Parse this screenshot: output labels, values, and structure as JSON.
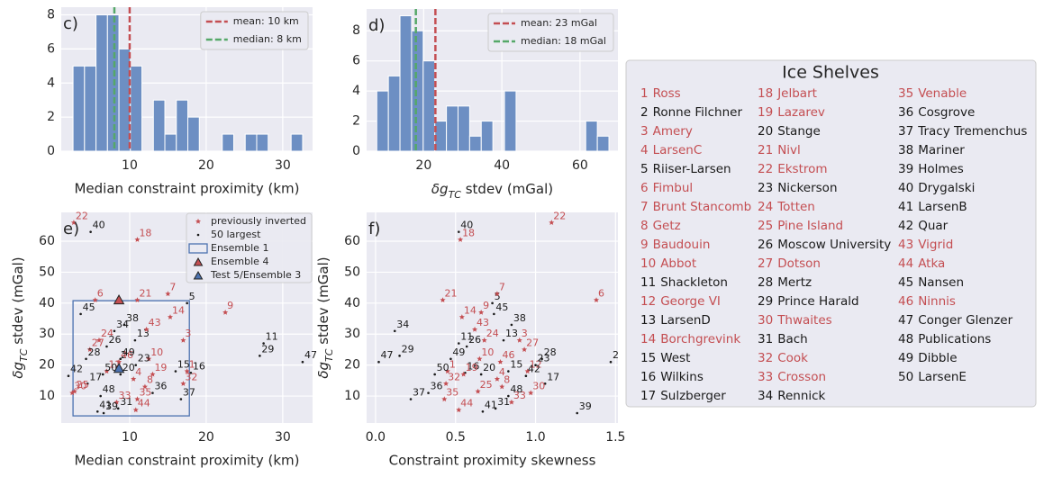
{
  "chart_data": [
    {
      "type": "histogram",
      "label": "c)",
      "xlabel": "Median constraint proximity (km)",
      "bins": [
        2.6,
        4.1,
        5.6,
        7.1,
        8.6,
        10.1,
        11.6,
        13.1,
        14.6,
        16.1,
        17.6,
        19.1,
        20.6,
        22.1,
        23.6,
        25.1,
        26.6,
        28.1,
        29.6,
        31.1,
        32.6
      ],
      "values": [
        5,
        5,
        8,
        8,
        6,
        5,
        0,
        3,
        1,
        3,
        2,
        0,
        0,
        1,
        0,
        1,
        1,
        0,
        0,
        1
      ],
      "color": "#6d8fc3",
      "mean": 10,
      "median": 8,
      "mean_color": "#c44e52",
      "median_color": "#55a868",
      "legend_labels": [
        "mean: 10 km",
        "median: 8 km"
      ],
      "xlim": [
        1.06,
        33.9
      ],
      "ylim": [
        0,
        8.45
      ],
      "xticks": [
        10,
        20,
        30
      ],
      "yticks": [
        0,
        2,
        4,
        6,
        8
      ],
      "grid": true
    },
    {
      "type": "histogram",
      "label": "d)",
      "xlabel": [
        "δg",
        "TC",
        " stdev (mGal)"
      ],
      "bins": [
        8,
        10.97,
        13.94,
        16.91,
        19.88,
        22.85,
        25.82,
        28.79,
        31.76,
        34.73,
        37.7,
        40.67,
        43.64,
        46.61,
        49.58,
        52.55,
        55.52,
        58.49,
        61.46,
        64.43,
        67.4
      ],
      "values": [
        4,
        5,
        9,
        8,
        6,
        2,
        3,
        3,
        1,
        2,
        0,
        4,
        0,
        0,
        0,
        0,
        0,
        0,
        2,
        1
      ],
      "color": "#6d8fc3",
      "mean": 23,
      "median": 18,
      "mean_color": "#c44e52",
      "median_color": "#55a868",
      "legend_labels": [
        "mean: 23 mGal",
        "median: 18 mGal"
      ],
      "xlim": [
        5.4,
        69.7
      ],
      "ylim": [
        0,
        9.45
      ],
      "xticks": [
        20,
        40,
        60
      ],
      "yticks": [
        0,
        2,
        4,
        6,
        8
      ],
      "grid": true
    },
    {
      "type": "scatter",
      "label": "e)",
      "xlabel": "Median constraint proximity (km)",
      "ylabel": [
        "δg",
        "TC",
        " stdev (mGal)"
      ],
      "x": [
        17.5,
        8.6,
        17,
        10.5,
        17.5,
        5.5,
        15,
        12,
        22.5,
        12.5,
        27.5,
        7,
        10.7,
        15.3,
        16,
        18,
        4.5,
        11,
        13,
        8.8,
        11,
        2.7,
        10.8,
        6,
        2.8,
        7,
        4.8,
        4.3,
        27,
        2.5,
        8.5,
        17,
        8.3,
        8,
        11,
        13,
        16.7,
        9.3,
        6.6,
        4.9,
        5.8,
        2,
        12.2,
        10.8,
        3.6,
        8.6,
        32.6,
        6.2,
        8.8,
        6.5
      ],
      "values": [
        18,
        21,
        28,
        15.5,
        40,
        41,
        43,
        13,
        37,
        22,
        27,
        18,
        28,
        35.5,
        18,
        17.5,
        14,
        60.5,
        17,
        17,
        41,
        66,
        20,
        28,
        11.5,
        26,
        25,
        22,
        23,
        11,
        6,
        14,
        8,
        31,
        9,
        11,
        9,
        33,
        4.5,
        63,
        5,
        16.5,
        31.5,
        5.5,
        36.5,
        21,
        21,
        10,
        22,
        17
      ],
      "legend": [
        {
          "label": "previously inverted",
          "color": "#c44e52",
          "marker": "star"
        },
        {
          "label": "50 largest",
          "color": "#1a1a1a",
          "marker": "dot"
        },
        {
          "label": "Ensemble 1",
          "color": "#4c72b0",
          "marker": "box"
        },
        {
          "label": "Ensemble 4",
          "color": "#c44e52",
          "marker": "triangle"
        },
        {
          "label": "Test 5/Ensemble 3",
          "color": "#4c72b0",
          "marker": "triangle"
        }
      ],
      "ensemble_1": {
        "x": [
          2.6,
          17.8
        ],
        "y": [
          3.6,
          40.8
        ]
      },
      "ensemble_4": {
        "x": 8.6,
        "y": 40.8
      },
      "test_5": {
        "x": 8.6,
        "y": 18.7
      },
      "xlim": [
        1.06,
        33.9
      ],
      "ylim": [
        1.3,
        69.3
      ],
      "xticks": [
        10,
        20,
        30
      ],
      "yticks": [
        10,
        20,
        30,
        40,
        50,
        60
      ],
      "grid": true
    },
    {
      "type": "scatter",
      "label": "f)",
      "xlabel": "Constraint proximity skewness",
      "ylabel": [
        "δg",
        "TC",
        " stdev (mGal)"
      ],
      "x": [
        0.45,
        1.47,
        0.9,
        0.76,
        0.73,
        1.38,
        0.76,
        0.79,
        0.66,
        0.65,
        0.52,
        0.95,
        0.8,
        0.54,
        0.83,
        0.56,
        1.06,
        0.53,
        0.55,
        0.66,
        0.42,
        1.1,
        1.0,
        0.68,
        0.64,
        0.57,
        0.93,
        1.04,
        0.15,
        0.97,
        0.75,
        0.44,
        0.85,
        0.12,
        0.43,
        0.33,
        0.22,
        0.85,
        1.26,
        0.52,
        0.67,
        0.94,
        0.62,
        0.52,
        0.74,
        0.78,
        0.02,
        0.83,
        0.47,
        0.37
      ],
      "values": [
        18,
        21,
        28,
        15.5,
        40,
        41,
        43,
        13,
        37,
        22,
        27,
        18,
        28,
        35.5,
        18,
        17.5,
        14,
        60.5,
        17,
        17,
        41,
        66,
        20,
        28,
        11.5,
        26,
        25,
        22,
        23,
        11,
        6,
        14,
        8,
        31,
        9,
        11,
        9,
        33,
        4.5,
        63,
        5,
        16.5,
        31.5,
        5.5,
        36.5,
        21,
        21,
        10,
        22,
        17
      ],
      "xlim": [
        -0.056,
        1.515
      ],
      "ylim": [
        1.3,
        69.3
      ],
      "xticks": [
        {
          "value": 0,
          "label": "0.0"
        },
        0.5,
        {
          "value": 1,
          "label": "1.0"
        },
        1.5
      ],
      "yticks": [
        10,
        20,
        30,
        40,
        50,
        60
      ],
      "grid": true
    }
  ],
  "shelves": {
    "title": "Ice Shelves",
    "ids": [
      1,
      2,
      3,
      4,
      5,
      6,
      7,
      8,
      9,
      10,
      11,
      12,
      13,
      14,
      15,
      16,
      17,
      18,
      19,
      20,
      21,
      22,
      23,
      24,
      25,
      26,
      27,
      28,
      29,
      30,
      31,
      32,
      33,
      34,
      35,
      36,
      37,
      38,
      39,
      40,
      41,
      42,
      43,
      44,
      45,
      46,
      47,
      48,
      49,
      50
    ],
    "names": [
      "Ross",
      "Ronne Filchner",
      "Amery",
      "LarsenC",
      "Riiser-Larsen",
      "Fimbul",
      "Brunt Stancomb",
      "Getz",
      "Baudouin",
      "Abbot",
      "Shackleton",
      "George VI",
      "LarsenD",
      "Borchgrevink",
      "West",
      "Wilkins",
      "Sulzberger",
      "Jelbart",
      "Lazarev",
      "Stange",
      "Nivl",
      "Ekstrom",
      "Nickerson",
      "Totten",
      "Pine Island",
      "Moscow University",
      "Dotson",
      "Mertz",
      "Prince Harald",
      "Thwaites",
      "Bach",
      "Cook",
      "Crosson",
      "Rennick",
      "Venable",
      "Cosgrove",
      "Tracy Tremenchus",
      "Mariner",
      "Holmes",
      "Drygalski",
      "LarsenB",
      "Quar",
      "Vigrid",
      "Atka",
      "Nansen",
      "Ninnis",
      "Conger Glenzer",
      "Publications",
      "Dibble",
      "LarsenE"
    ],
    "previously_inverted": [
      true,
      false,
      true,
      true,
      false,
      true,
      true,
      true,
      true,
      true,
      false,
      true,
      false,
      true,
      false,
      false,
      false,
      true,
      true,
      false,
      true,
      true,
      false,
      true,
      true,
      false,
      true,
      false,
      false,
      true,
      false,
      true,
      true,
      false,
      true,
      false,
      false,
      false,
      false,
      false,
      false,
      false,
      true,
      true,
      false,
      true,
      false,
      false,
      false,
      false
    ],
    "inverted_color": "#c44e52",
    "other_color": "#1a1a1a"
  }
}
